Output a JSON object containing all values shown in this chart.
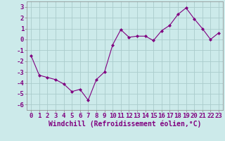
{
  "x": [
    0,
    1,
    2,
    3,
    4,
    5,
    6,
    7,
    8,
    9,
    10,
    11,
    12,
    13,
    14,
    15,
    16,
    17,
    18,
    19,
    20,
    21,
    22,
    23
  ],
  "y": [
    -1.5,
    -3.3,
    -3.5,
    -3.7,
    -4.1,
    -4.8,
    -4.6,
    -5.6,
    -3.7,
    -3.0,
    -0.5,
    0.9,
    0.2,
    0.3,
    0.3,
    -0.1,
    0.8,
    1.3,
    2.3,
    2.9,
    1.9,
    1.0,
    0.0,
    0.6
  ],
  "line_color": "#800080",
  "marker": "D",
  "marker_size": 2,
  "bg_color": "#cceaea",
  "grid_color": "#aacccc",
  "xlabel": "Windchill (Refroidissement éolien,°C)",
  "xlabel_fontsize": 7,
  "tick_fontsize": 6.5,
  "ylim": [
    -6.5,
    3.5
  ],
  "yticks": [
    -6,
    -5,
    -4,
    -3,
    -2,
    -1,
    0,
    1,
    2,
    3
  ],
  "xlim": [
    -0.5,
    23.5
  ],
  "xticks": [
    0,
    1,
    2,
    3,
    4,
    5,
    6,
    7,
    8,
    9,
    10,
    11,
    12,
    13,
    14,
    15,
    16,
    17,
    18,
    19,
    20,
    21,
    22,
    23
  ],
  "xtick_labels": [
    "0",
    "1",
    "2",
    "3",
    "4",
    "5",
    "6",
    "7",
    "8",
    "9",
    "10",
    "11",
    "12",
    "13",
    "14",
    "15",
    "16",
    "17",
    "18",
    "19",
    "20",
    "21",
    "22",
    "23"
  ]
}
